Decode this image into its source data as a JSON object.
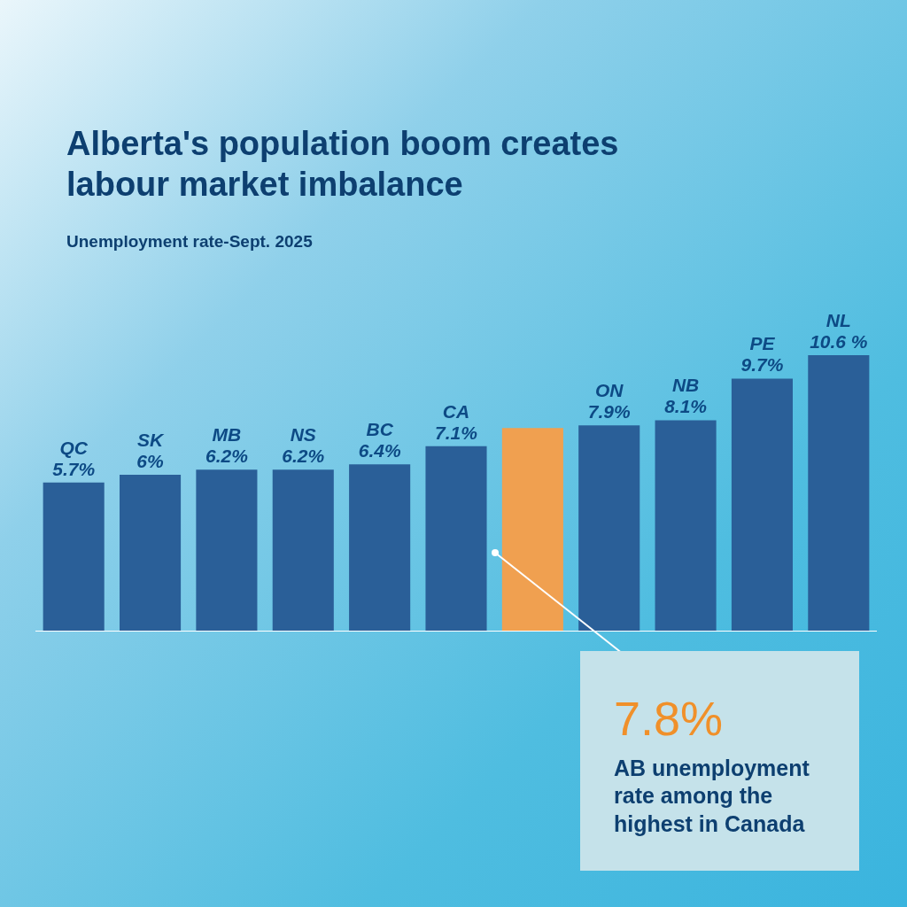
{
  "chart_data": {
    "type": "bar",
    "title": "Alberta's population boom creates labour market imbalance",
    "subtitle": "Unemployment rate-Sept. 2025",
    "categories": [
      "QC",
      "SK",
      "MB",
      "NS",
      "BC",
      "CA",
      null,
      "ON",
      "NB",
      "PE",
      "NL"
    ],
    "values": [
      5.7,
      6,
      6.2,
      6.2,
      6.4,
      7.1,
      7.8,
      7.9,
      8.1,
      9.7,
      10.6
    ],
    "colors": [
      "#2a5f98",
      "#2a5f98",
      "#2a5f98",
      "#2a5f98",
      "#2a5f98",
      "#2a5f98",
      "#f0a050",
      "#2a5f98",
      "#2a5f98",
      "#2a5f98",
      "#2a5f98"
    ],
    "value_labels": [
      "5.7%",
      "6%",
      "6.2%",
      "6.2%",
      "6.4%",
      "7.1%",
      null,
      "7.9%",
      "8.1%",
      "9.7%",
      "10.6 %"
    ],
    "annotations": [
      "7.8%",
      "AB unemployment rate among the highest in Canada"
    ],
    "tick_labels": false,
    "grid": false,
    "legend": false
  }
}
